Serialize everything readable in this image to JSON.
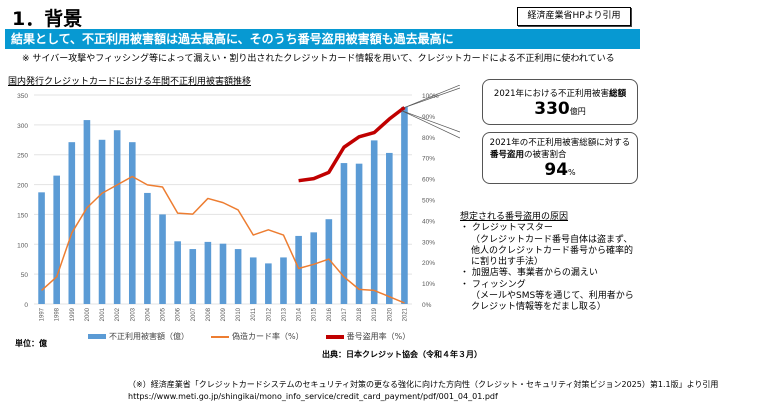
{
  "header": {
    "title": "1．背景",
    "cite_box": "経済産業省HPより引用"
  },
  "banner": "結果として、不正利用被害額は過去最高に、そのうち番号盗用被害額も過去最高に",
  "note": "※ サイバー攻撃やフィッシング等によって漏えい・割り出されたクレジットカード情報を用いて、クレジットカードによる不正利用に使われている",
  "colors": {
    "banner": "#0799d2",
    "bars": "#5b9bd5",
    "counterfeit": "#ed7d31",
    "number_theft": "#c00000"
  },
  "chart_data": {
    "type": "bar+line",
    "title": "国内発行クレジットカードにおける年間不正利用被害額推移",
    "categories": [
      "1997",
      "1998",
      "1999",
      "2000",
      "2001",
      "2002",
      "2003",
      "2004",
      "2005",
      "2006",
      "2007",
      "2008",
      "2009",
      "2010",
      "2011",
      "2012",
      "2013",
      "2014",
      "2015",
      "2016",
      "2017",
      "2018",
      "2019",
      "2020",
      "2021"
    ],
    "left_axis": {
      "ylim": [
        0,
        350
      ],
      "ticks": [
        "0",
        "50",
        "100",
        "150",
        "200",
        "250",
        "300",
        "350"
      ]
    },
    "right_axis": {
      "ylim": [
        0,
        100
      ],
      "ticks": [
        "0%",
        "10%",
        "20%",
        "30%",
        "40%",
        "50%",
        "60%",
        "70%",
        "80%",
        "90%",
        "100%"
      ]
    },
    "grid": true,
    "legend_placement": "bottom",
    "series": [
      {
        "name": "不正利用被害額（億）",
        "type": "bar",
        "axis": "left",
        "values": [
          187,
          215,
          271,
          308,
          275,
          291,
          271,
          186,
          150,
          105,
          92,
          104,
          101,
          92,
          78,
          68,
          78,
          114,
          120,
          142,
          236,
          235,
          274,
          253,
          330
        ]
      },
      {
        "name": "偽造カード率（%）",
        "type": "line",
        "axis": "right",
        "values": [
          6.5,
          13,
          34,
          46,
          53,
          57,
          61,
          57,
          56,
          43.5,
          43,
          50.5,
          48.5,
          45,
          33,
          35.5,
          33,
          17,
          19,
          21.5,
          13,
          7,
          6.5,
          3.5,
          0.5
        ]
      },
      {
        "name": "番号盗用率（%）",
        "type": "line",
        "axis": "right",
        "values": [
          null,
          null,
          null,
          null,
          null,
          null,
          null,
          null,
          null,
          null,
          null,
          null,
          null,
          null,
          null,
          null,
          null,
          59,
          60,
          63,
          75,
          80,
          82,
          88.5,
          94
        ]
      }
    ],
    "unit_label": "単位：億",
    "source": "出典：日本クレジット協会（令和４年３月）"
  },
  "callouts": {
    "total": {
      "line_pre": "2021年における不正利用被害",
      "line_bold": "総額",
      "value": "330",
      "unit": "億円"
    },
    "share": {
      "line1": "2021年の不正利用被害総額に対する",
      "line2_bold": "番号盗用",
      "line2_rest": "の被害割合",
      "value": "94",
      "unit": "%"
    }
  },
  "causes": {
    "heading": "想定される番号盗用の原因",
    "items": [
      {
        "label": "クレジットマスター",
        "detail": [
          "（クレジットカード番号自体は盗まず、",
          "他人のクレジットカード番号から確率的",
          "に割り出す手法）"
        ]
      },
      {
        "label": "加盟店等、事業者からの漏えい",
        "detail": []
      },
      {
        "label": "フィッシング",
        "detail": [
          "（メールやSMS等を通じて、利用者から",
          "クレジット情報等をだまし取る）"
        ]
      }
    ]
  },
  "footer": {
    "line1": "（※）経済産業省「クレジットカードシステムのセキュリティ対策の更なる強化に向けた方向性（クレジット・セキュリティ対策ビジョン2025）第1.1版」より引用",
    "line2": "https://www.meti.go.jp/shingikai/mono_info_service/credit_card_payment/pdf/001_04_01.pdf"
  }
}
